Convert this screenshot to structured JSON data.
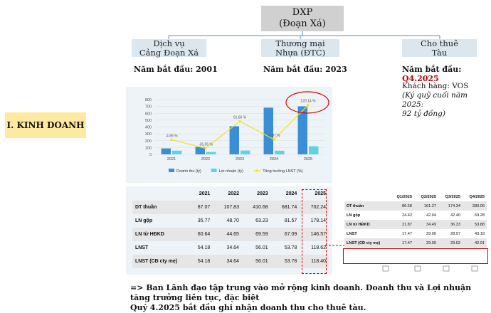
{
  "org": {
    "top": {
      "line1": "DXP",
      "line2": "(Đoạn Xá)"
    },
    "children": [
      {
        "line1": "Dịch vụ",
        "line2": "Cảng Đoạn Xá",
        "start_label": "Năm bắt đầu:",
        "start_value": "2001"
      },
      {
        "line1": "Thương mại",
        "line2": "Nhựa (ĐTC)",
        "start_label": "Năm bắt đầu:",
        "start_value": "2023"
      },
      {
        "line1": "Cho thuê",
        "line2": "Tàu",
        "start_label": "Năm bắt đầu:",
        "start_value": "Q4.2025"
      }
    ],
    "client_note": {
      "line1": "Khách hàng: VOS",
      "line2": "(Ký quỹ cuối năm 2025:",
      "line3": "92 tỷ đồng)"
    }
  },
  "section_label": "I. KINH DOANH",
  "chart_data": {
    "type": "bar",
    "categories": [
      "2021",
      "2022",
      "2023",
      "2024",
      "2025"
    ],
    "series": [
      {
        "name": "Doanh thu (tỷ)",
        "values": [
          87.07,
          107.83,
          410.68,
          681.74,
          702.24
        ],
        "color": "#3a8ed6"
      },
      {
        "name": "Lợi nhuận (tỷ)",
        "values": [
          54.18,
          34.64,
          56.01,
          53.78,
          118.62
        ],
        "color": "#5fd3e0"
      },
      {
        "name": "Tăng trưởng LNST (%)",
        "type": "line",
        "values": [
          -4.86,
          -36.05,
          61.66,
          -3.97,
          120.14
        ],
        "labels": [
          "-4.86 %",
          "-36.05 %",
          "61.66 %",
          "-3.97 %",
          "120.14 %"
        ],
        "color": "#f2e21b"
      }
    ],
    "ylim": [
      0,
      800
    ],
    "yticks": [
      0,
      100,
      200,
      300,
      400,
      500,
      600,
      700,
      800
    ],
    "grid": true,
    "legend": "bottom"
  },
  "annual_table": {
    "columns": [
      "2021",
      "2022",
      "2023",
      "2024",
      "2025"
    ],
    "rows": [
      {
        "label": "DT thuần",
        "values": [
          "87.07",
          "107.83",
          "410.68",
          "681.74",
          "702.24"
        ]
      },
      {
        "label": "LN gộp",
        "values": [
          "35.77",
          "48.70",
          "63.23",
          "81.57",
          "178.14"
        ]
      },
      {
        "label": "LN từ HĐKD",
        "values": [
          "60.64",
          "44.65",
          "69.59",
          "67.09",
          "146.57"
        ]
      },
      {
        "label": "LNST",
        "values": [
          "54.18",
          "34.64",
          "56.01",
          "53.78",
          "118.62"
        ]
      },
      {
        "label": "LNST (CĐ cty mẹ)",
        "values": [
          "54.18",
          "34.64",
          "56.01",
          "53.78",
          "118.40"
        ]
      }
    ]
  },
  "quarter_table": {
    "columns": [
      "Q1/2025",
      "Q2/2025",
      "Q3/2025",
      "Q4/2025"
    ],
    "rows": [
      {
        "label": "DT thuần",
        "values": [
          "86.58",
          "161.27",
          "174.34",
          "280.06"
        ]
      },
      {
        "label": "LN gộp",
        "values": [
          "24.42",
          "42.04",
          "42.40",
          "69.28"
        ]
      },
      {
        "label": "LN từ HĐKD",
        "values": [
          "21.87",
          "34.49",
          "36.33",
          "53.88"
        ]
      },
      {
        "label": "LNST",
        "values": [
          "17.47",
          "29.00",
          "28.97",
          "43.18"
        ]
      },
      {
        "label": "LNST (CĐ cty mẹ)",
        "values": [
          "17.47",
          "29.00",
          "29.02",
          "42.91"
        ]
      }
    ]
  },
  "conclusion": {
    "line1": "=> Ban Lãnh đạo tập trung vào mở rộng kinh doanh. Doanh thu và Lợi nhuận tăng trưởng liên tục, đặc biệt",
    "line2": "Quý 4.2025 bắt đầu ghi nhận doanh thu cho thuê tàu."
  },
  "colors": {
    "accent_red": "#c00000",
    "connector_blue": "#4a8fd0",
    "section_bg": "#fde9a0"
  }
}
